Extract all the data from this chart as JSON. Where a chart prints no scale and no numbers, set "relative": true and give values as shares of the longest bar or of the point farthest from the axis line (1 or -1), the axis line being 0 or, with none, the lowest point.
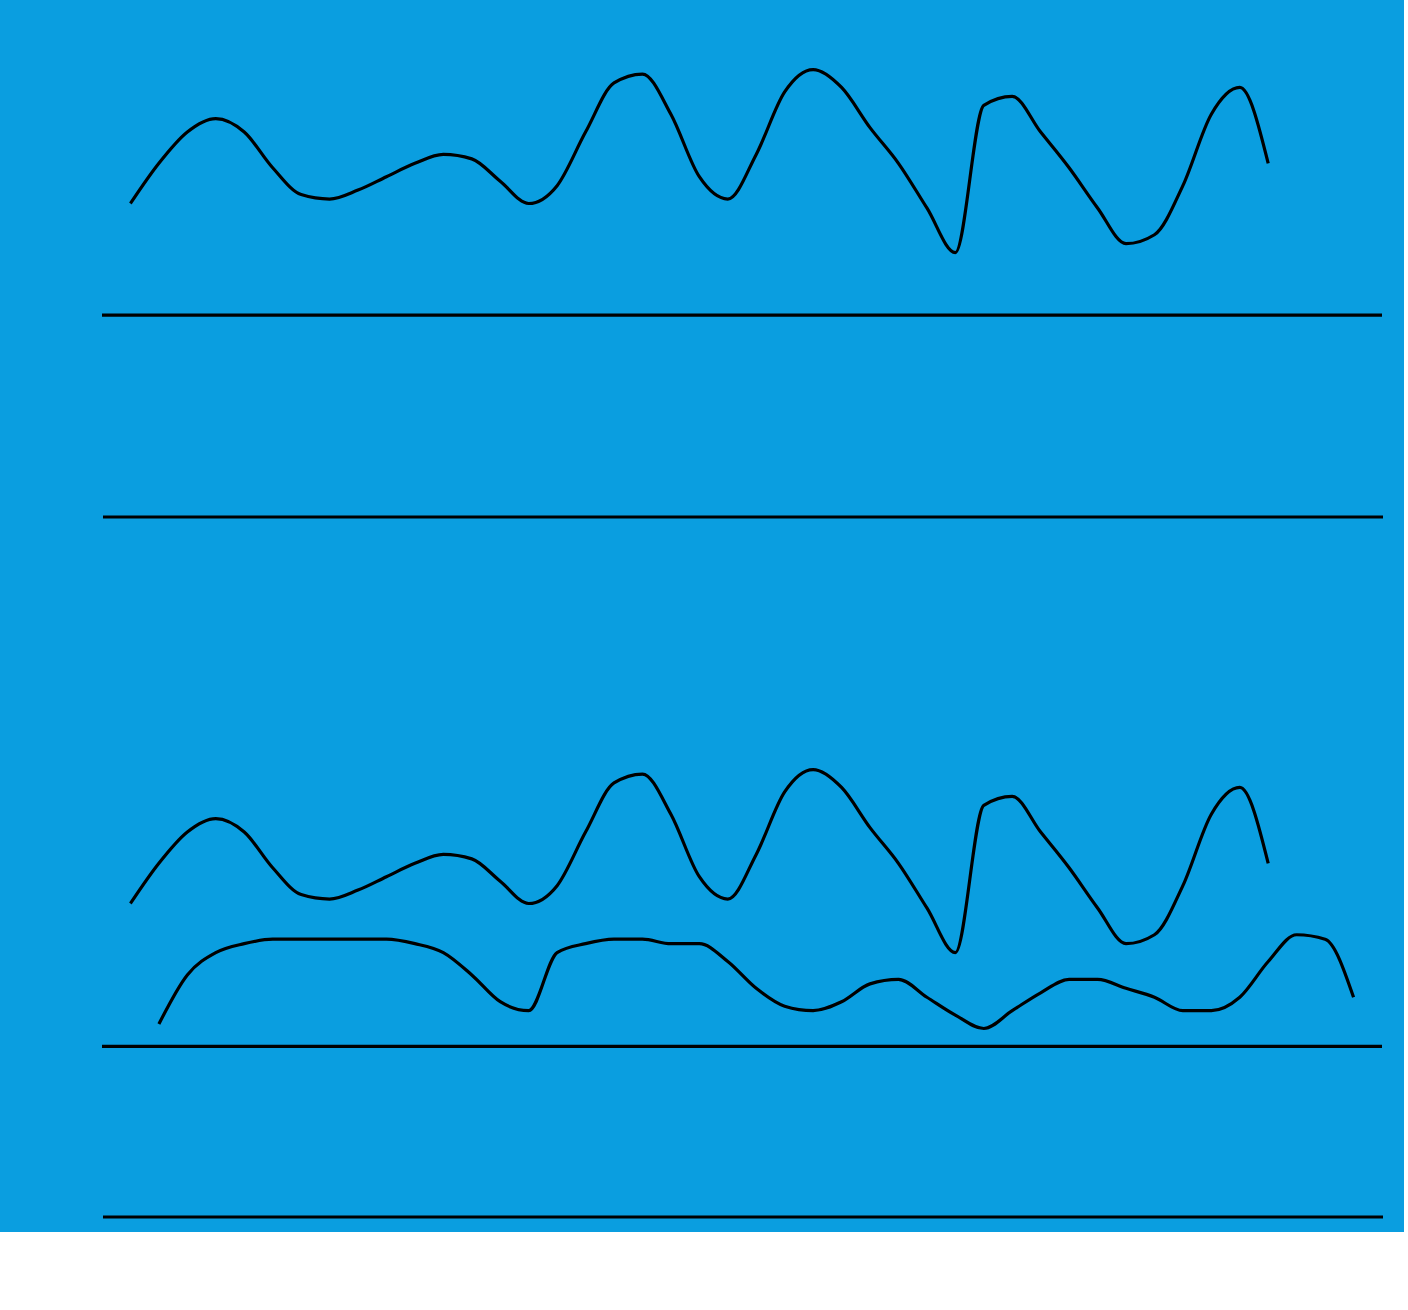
{
  "chart_data": [
    {
      "type": "line",
      "relative": true,
      "grid": false,
      "tick_labels": false,
      "categories": [
        null,
        null,
        null,
        null,
        null,
        null,
        null,
        null,
        null,
        null,
        null,
        null,
        null,
        null,
        null,
        null,
        null,
        null,
        null,
        null,
        null,
        null,
        null,
        null,
        null,
        null,
        null,
        null,
        null,
        null,
        null,
        null,
        null,
        null,
        null,
        null,
        null,
        null,
        null,
        null,
        null,
        null,
        null,
        null
      ],
      "series": [
        {
          "color": "#000000",
          "values": [
            0.7,
            0.79,
            0.86,
            0.89,
            0.86,
            0.78,
            0.72,
            0.71,
            0.73,
            0.76,
            0.79,
            0.81,
            0.8,
            0.75,
            0.7,
            0.74,
            0.86,
            0.97,
            0.99,
            0.9,
            0.76,
            0.71,
            0.81,
            0.95,
            1.0,
            0.96,
            0.87,
            0.79,
            0.69,
            0.59,
            0.92,
            0.94,
            0.86,
            0.78,
            0.69,
            0.61,
            0.63,
            0.74,
            0.9,
            0.96,
            0.79,
            null,
            null,
            null
          ]
        }
      ],
      "ref_lines": [
        {
          "axis": "y",
          "value": 0.45,
          "color": "#000000"
        }
      ]
    },
    {
      "type": "line",
      "relative": true,
      "grid": false,
      "tick_labels": false,
      "categories": [
        null,
        null,
        null,
        null,
        null,
        null,
        null,
        null,
        null,
        null,
        null,
        null,
        null,
        null,
        null,
        null,
        null,
        null,
        null,
        null,
        null,
        null,
        null,
        null,
        null,
        null,
        null,
        null,
        null,
        null,
        null,
        null,
        null,
        null,
        null,
        null,
        null,
        null,
        null,
        null,
        null,
        null,
        null,
        null
      ],
      "series": [
        {
          "color": "#000000",
          "values": [
            0.7,
            0.79,
            0.86,
            0.89,
            0.86,
            0.78,
            0.72,
            0.71,
            0.73,
            0.76,
            0.79,
            0.81,
            0.8,
            0.75,
            0.7,
            0.74,
            0.86,
            0.97,
            0.99,
            0.9,
            0.76,
            0.71,
            0.81,
            0.95,
            1.0,
            0.96,
            0.87,
            0.79,
            0.69,
            0.59,
            0.92,
            0.94,
            0.86,
            0.78,
            0.69,
            0.61,
            0.63,
            0.74,
            0.9,
            0.96,
            0.79,
            null,
            null,
            null
          ]
        },
        {
          "color": "#000000",
          "values": [
            null,
            0.43,
            0.54,
            0.59,
            0.61,
            0.62,
            0.62,
            0.62,
            0.62,
            0.62,
            0.61,
            0.59,
            0.54,
            0.48,
            0.46,
            0.59,
            0.61,
            0.62,
            0.62,
            0.61,
            0.61,
            0.57,
            0.51,
            0.47,
            0.46,
            0.48,
            0.52,
            0.53,
            0.49,
            0.45,
            0.42,
            0.46,
            0.5,
            0.53,
            0.53,
            0.51,
            0.49,
            0.46,
            0.46,
            0.49,
            0.57,
            0.63,
            0.62,
            0.49
          ]
        }
      ],
      "ref_lines": [
        {
          "axis": "y",
          "value": 0.38,
          "color": "#000000"
        }
      ]
    }
  ]
}
